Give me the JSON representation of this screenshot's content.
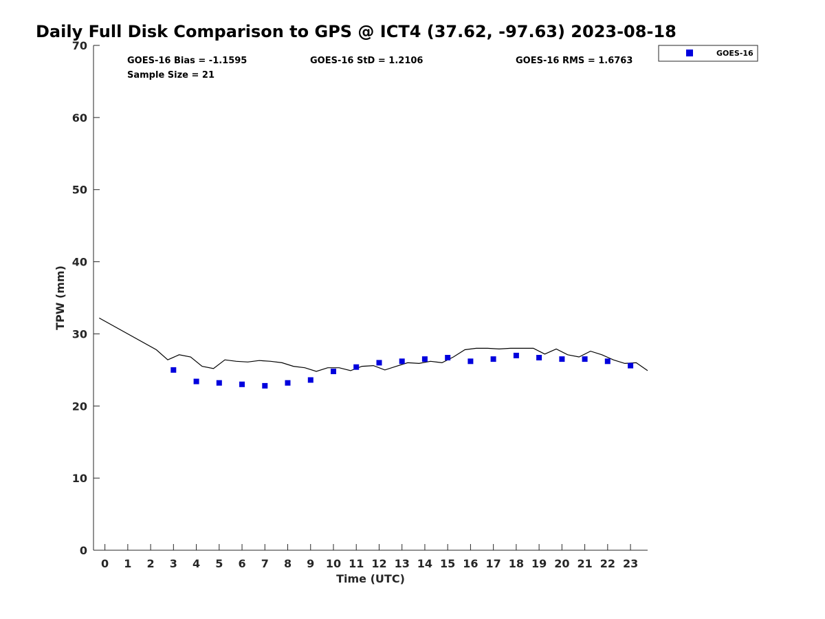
{
  "chart_data": {
    "type": "scatter",
    "title": "Daily Full Disk Comparison to GPS @ ICT4 (37.62, -97.63) 2023-08-18",
    "xlabel": "Time (UTC)",
    "ylabel": "TPW (mm)",
    "xlim": [
      -0.5,
      23.75
    ],
    "ylim": [
      0,
      70
    ],
    "x_ticks": [
      0,
      1,
      2,
      3,
      4,
      5,
      6,
      7,
      8,
      9,
      10,
      11,
      12,
      13,
      14,
      15,
      16,
      17,
      18,
      19,
      20,
      21,
      22,
      23
    ],
    "y_ticks": [
      0,
      10,
      20,
      30,
      40,
      50,
      60,
      70
    ],
    "stats": {
      "bias": "GOES-16 Bias = -1.1595",
      "std": "GOES-16 StD = 1.2106",
      "rms": "GOES-16 RMS = 1.6763",
      "sample_size": "Sample Size = 21"
    },
    "legend": {
      "label": "GOES-16",
      "position": "top-right outside"
    },
    "series": [
      {
        "name": "GOES-16",
        "marker": "square",
        "color": "#0000dd",
        "x": [
          3,
          4,
          5,
          6,
          7,
          8,
          9,
          10,
          11,
          12,
          13,
          14,
          15,
          16,
          17,
          18,
          19,
          20,
          21,
          22,
          23
        ],
        "y": [
          25.0,
          23.4,
          23.2,
          23.0,
          22.8,
          23.2,
          23.6,
          24.8,
          25.4,
          26.0,
          26.2,
          26.5,
          26.7,
          26.2,
          26.5,
          27.0,
          26.7,
          26.5,
          26.5,
          26.2,
          25.6
        ]
      },
      {
        "name": "GPS",
        "marker": "none",
        "line": true,
        "color": "#000000",
        "x": [
          -0.25,
          2.25,
          2.75,
          3.25,
          3.75,
          4.25,
          4.75,
          5.25,
          5.75,
          6.25,
          6.75,
          7.25,
          7.75,
          8.25,
          8.75,
          9.25,
          9.75,
          10.25,
          10.75,
          11.25,
          11.75,
          12.25,
          12.75,
          13.25,
          13.75,
          14.25,
          14.75,
          15.25,
          15.75,
          16.25,
          16.75,
          17.25,
          17.75,
          18.25,
          18.75,
          19.25,
          19.75,
          20.25,
          20.75,
          21.25,
          21.75,
          22.25,
          22.75,
          23.25,
          23.75
        ],
        "y": [
          32.2,
          27.8,
          26.4,
          27.1,
          26.8,
          25.5,
          25.2,
          26.4,
          26.2,
          26.1,
          26.3,
          26.2,
          26.0,
          25.5,
          25.3,
          24.8,
          25.3,
          25.3,
          24.9,
          25.5,
          25.6,
          25.0,
          25.5,
          26.0,
          25.9,
          26.2,
          26.0,
          26.8,
          27.8,
          28.0,
          28.0,
          27.9,
          28.0,
          28.0,
          28.0,
          27.2,
          27.9,
          27.1,
          26.8,
          27.6,
          27.1,
          26.4,
          25.9,
          26.0,
          24.9
        ]
      }
    ]
  }
}
